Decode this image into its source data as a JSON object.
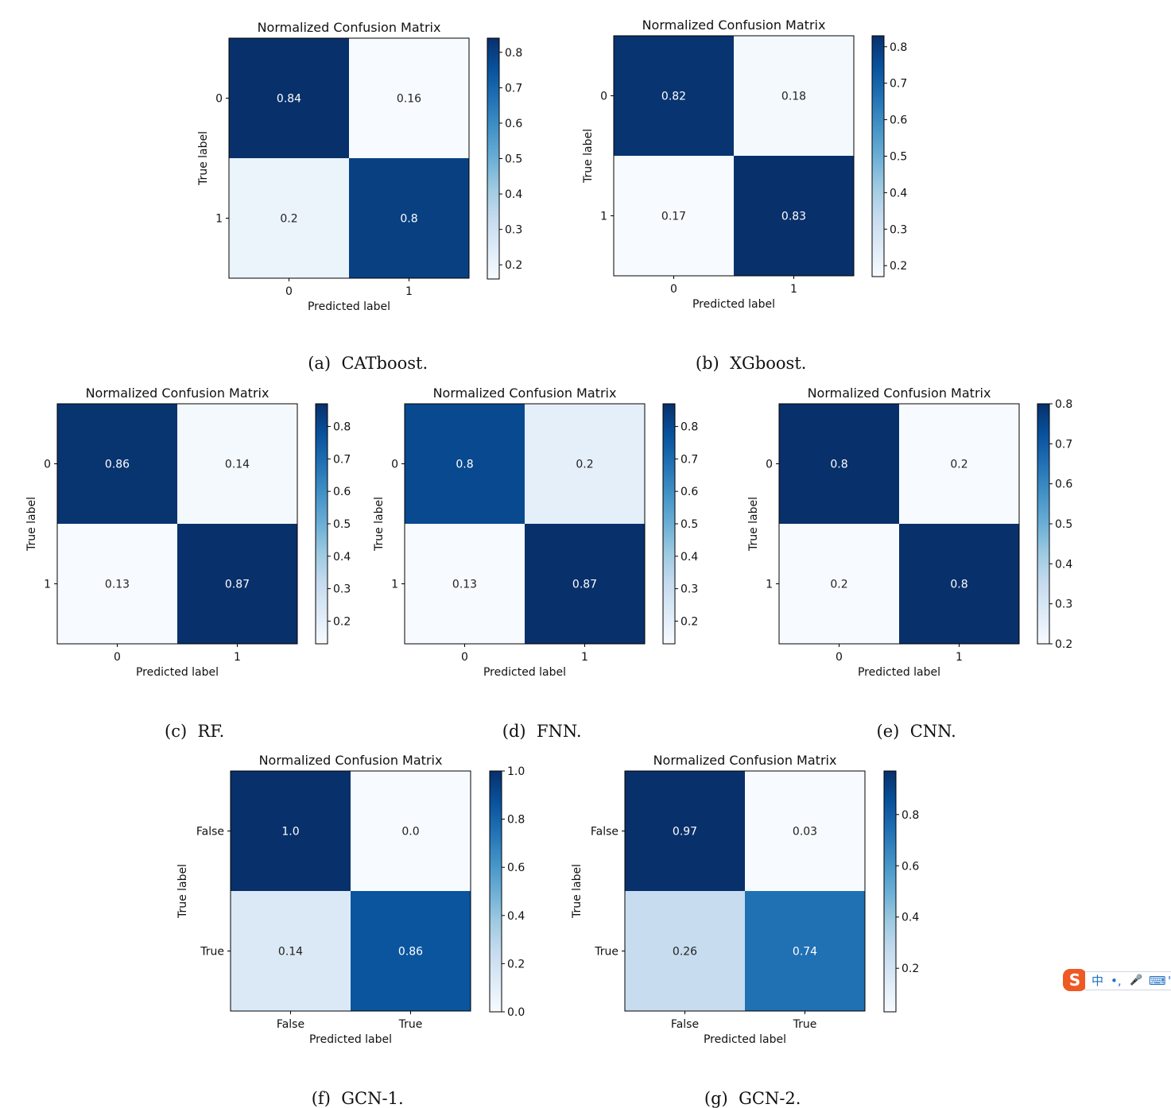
{
  "figure": {
    "colors": {
      "cmap_light": "#f7fbff",
      "cmap_dark": "#08306b",
      "axis": "#000000",
      "background": "#ffffff"
    }
  },
  "chart_data": [
    {
      "id": "a",
      "type": "heatmap",
      "title": "Normalized Confusion Matrix",
      "xlabel": "Predicted label",
      "ylabel": "True label",
      "row_labels": [
        "0",
        "1"
      ],
      "col_labels": [
        "0",
        "1"
      ],
      "values": [
        [
          0.84,
          0.16
        ],
        [
          0.2,
          0.8
        ]
      ],
      "cell_text": [
        [
          "0.84",
          "0.16"
        ],
        [
          "0.2",
          "0.8"
        ]
      ],
      "colorbar": {
        "range": [
          0.16,
          0.84
        ],
        "ticks": [
          "0.2",
          "0.3",
          "0.4",
          "0.5",
          "0.6",
          "0.7",
          "0.8"
        ]
      },
      "caption_tag": "(a)",
      "caption": "CATboost."
    },
    {
      "id": "b",
      "type": "heatmap",
      "title": "Normalized Confusion Matrix",
      "xlabel": "Predicted label",
      "ylabel": "True label",
      "row_labels": [
        "0",
        "1"
      ],
      "col_labels": [
        "0",
        "1"
      ],
      "values": [
        [
          0.82,
          0.18
        ],
        [
          0.17,
          0.83
        ]
      ],
      "cell_text": [
        [
          "0.82",
          "0.18"
        ],
        [
          "0.17",
          "0.83"
        ]
      ],
      "colorbar": {
        "range": [
          0.17,
          0.83
        ],
        "ticks": [
          "0.2",
          "0.3",
          "0.4",
          "0.5",
          "0.6",
          "0.7",
          "0.8"
        ]
      },
      "caption_tag": "(b)",
      "caption": "XGboost."
    },
    {
      "id": "c",
      "type": "heatmap",
      "title": "Normalized Confusion Matrix",
      "xlabel": "Predicted label",
      "ylabel": "True label",
      "row_labels": [
        "0",
        "1"
      ],
      "col_labels": [
        "0",
        "1"
      ],
      "values": [
        [
          0.86,
          0.14
        ],
        [
          0.13,
          0.87
        ]
      ],
      "cell_text": [
        [
          "0.86",
          "0.14"
        ],
        [
          "0.13",
          "0.87"
        ]
      ],
      "colorbar": {
        "range": [
          0.13,
          0.87
        ],
        "ticks": [
          "0.2",
          "0.3",
          "0.4",
          "0.5",
          "0.6",
          "0.7",
          "0.8"
        ]
      },
      "caption_tag": "(c)",
      "caption": "RF."
    },
    {
      "id": "d",
      "type": "heatmap",
      "title": "Normalized Confusion Matrix",
      "xlabel": "Predicted label",
      "ylabel": "True label",
      "row_labels": [
        "0",
        "1"
      ],
      "col_labels": [
        "0",
        "1"
      ],
      "values": [
        [
          0.8,
          0.2
        ],
        [
          0.13,
          0.87
        ]
      ],
      "cell_text": [
        [
          "0.8",
          "0.2"
        ],
        [
          "0.13",
          "0.87"
        ]
      ],
      "colorbar": {
        "range": [
          0.13,
          0.87
        ],
        "ticks": [
          "0.2",
          "0.3",
          "0.4",
          "0.5",
          "0.6",
          "0.7",
          "0.8"
        ]
      },
      "caption_tag": "(d)",
      "caption": "FNN."
    },
    {
      "id": "e",
      "type": "heatmap",
      "title": "Normalized Confusion Matrix",
      "xlabel": "Predicted label",
      "ylabel": "True label",
      "row_labels": [
        "0",
        "1"
      ],
      "col_labels": [
        "0",
        "1"
      ],
      "values": [
        [
          0.8,
          0.2
        ],
        [
          0.2,
          0.8
        ]
      ],
      "cell_text": [
        [
          "0.8",
          "0.2"
        ],
        [
          "0.2",
          "0.8"
        ]
      ],
      "colorbar": {
        "range": [
          0.2,
          0.8
        ],
        "ticks": [
          "0.2",
          "0.3",
          "0.4",
          "0.5",
          "0.6",
          "0.7",
          "0.8"
        ]
      },
      "caption_tag": "(e)",
      "caption": "CNN."
    },
    {
      "id": "f",
      "type": "heatmap",
      "title": "Normalized Confusion Matrix",
      "xlabel": "Predicted label",
      "ylabel": "True label",
      "row_labels": [
        "False",
        "True"
      ],
      "col_labels": [
        "False",
        "True"
      ],
      "values": [
        [
          1.0,
          0.0
        ],
        [
          0.14,
          0.86
        ]
      ],
      "cell_text": [
        [
          "1.0",
          "0.0"
        ],
        [
          "0.14",
          "0.86"
        ]
      ],
      "colorbar": {
        "range": [
          0.0,
          1.0
        ],
        "ticks": [
          "0.0",
          "0.2",
          "0.4",
          "0.6",
          "0.8",
          "1.0"
        ]
      },
      "caption_tag": "(f)",
      "caption": "GCN-1."
    },
    {
      "id": "g",
      "type": "heatmap",
      "title": "Normalized Confusion Matrix",
      "xlabel": "Predicted label",
      "ylabel": "True label",
      "row_labels": [
        "False",
        "True"
      ],
      "col_labels": [
        "False",
        "True"
      ],
      "values": [
        [
          0.97,
          0.03
        ],
        [
          0.26,
          0.74
        ]
      ],
      "cell_text": [
        [
          "0.97",
          "0.03"
        ],
        [
          "0.26",
          "0.74"
        ]
      ],
      "colorbar": {
        "range": [
          0.03,
          0.97
        ],
        "ticks": [
          "0.2",
          "0.4",
          "0.6",
          "0.8"
        ]
      },
      "caption_tag": "(g)",
      "caption": "GCN-2."
    }
  ],
  "ime_toolbar": {
    "logo": "S",
    "items": [
      "中",
      "•,",
      "🎤",
      "⌨",
      "'"
    ]
  }
}
